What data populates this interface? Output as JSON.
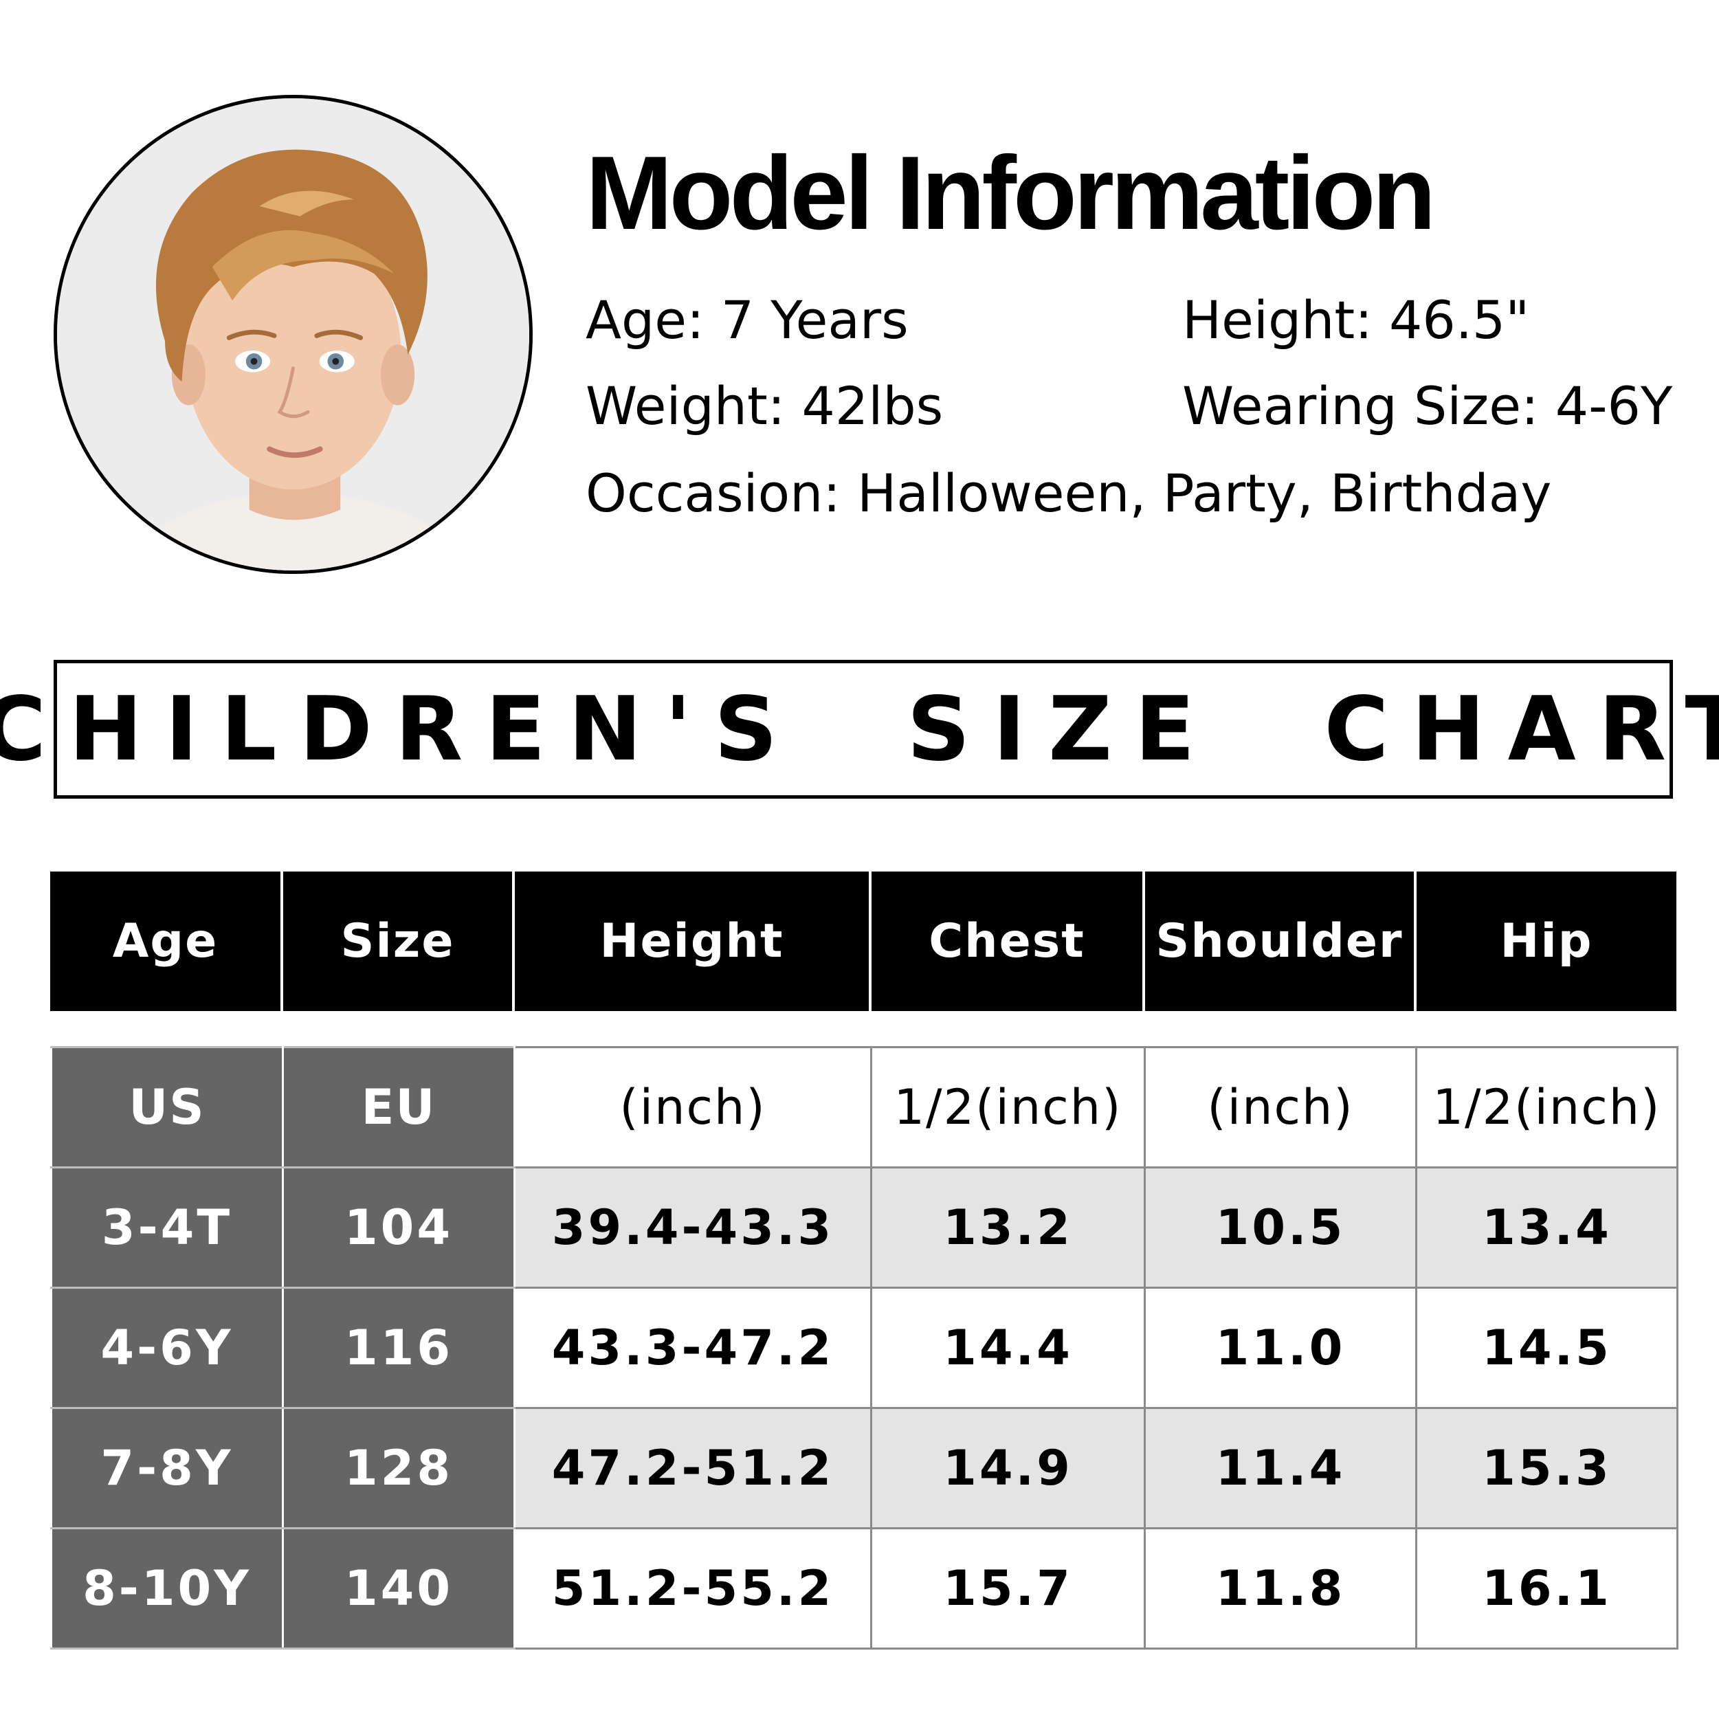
{
  "model": {
    "title": "Model Information",
    "age": "Age: 7 Years",
    "height": "Height: 46.5\"",
    "weight": "Weight: 42lbs",
    "wearing_size": "Wearing Size: 4-6Y",
    "occasion": "Occasion: Halloween, Party, Birthday"
  },
  "chart": {
    "title": "CHILDREN'S  SIZE  CHART",
    "headers": [
      "Age",
      "Size",
      "Height",
      "Chest",
      "Shoulder",
      "Hip"
    ],
    "units": [
      "US",
      "EU",
      "(inch)",
      "1/2(inch)",
      "(inch)",
      "1/2(inch)"
    ],
    "rows": [
      [
        "3-4T",
        "104",
        "39.4-43.3",
        "13.2",
        "10.5",
        "13.4"
      ],
      [
        "4-6Y",
        "116",
        "43.3-47.2",
        "14.4",
        "11.0",
        "14.5"
      ],
      [
        "7-8Y",
        "128",
        "47.2-51.2",
        "14.9",
        "11.4",
        "15.3"
      ],
      [
        "8-10Y",
        "140",
        "51.2-55.2",
        "15.7",
        "11.8",
        "16.1"
      ]
    ]
  },
  "colors": {
    "header_bg": "#000000",
    "label_col_bg": "#656565",
    "row_shade": "#e4e4e4"
  }
}
